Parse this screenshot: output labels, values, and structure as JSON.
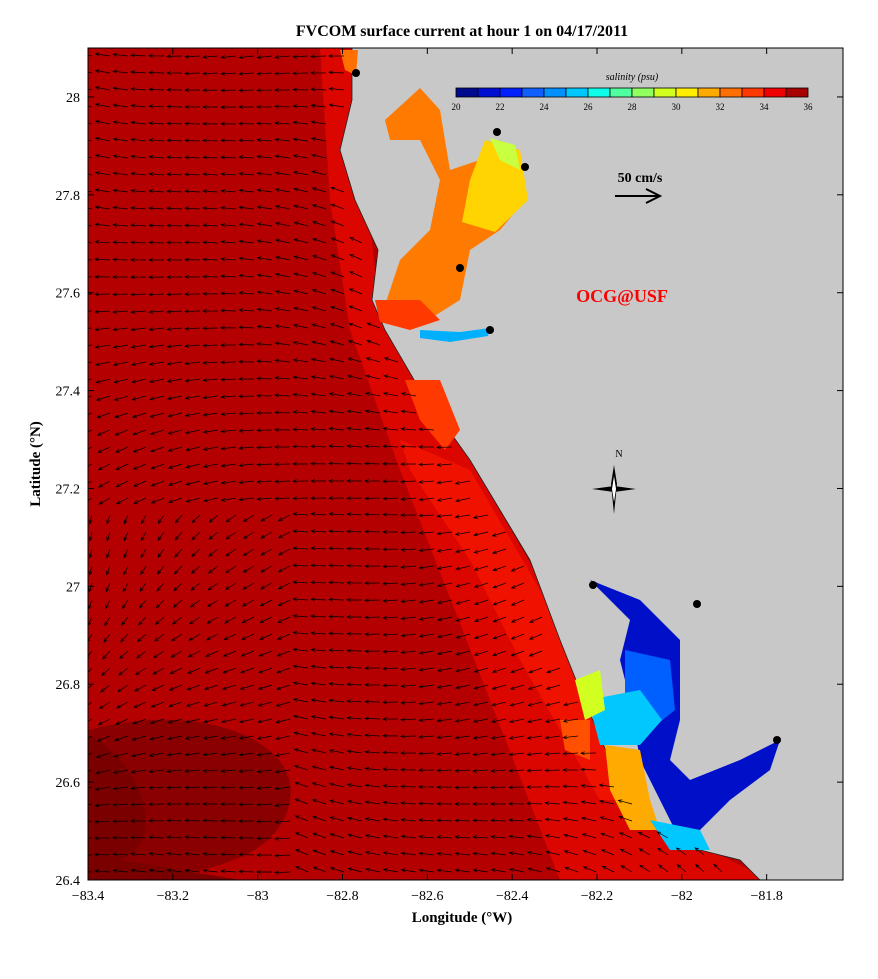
{
  "title": "FVCOM surface current at hour 1 on 04/17/2011",
  "xlabel": "Longitude (°W)",
  "ylabel": "Latitude (°N)",
  "xaxis": {
    "range": [
      -83.4,
      -81.62
    ],
    "ticks": [
      -83.4,
      -83.2,
      -83,
      -82.8,
      -82.6,
      -82.4,
      -82.2,
      -82,
      -81.8
    ],
    "tick_labels": [
      "−83.4",
      "−83.2",
      "−83",
      "−82.8",
      "−82.6",
      "−82.4",
      "−82.2",
      "−82",
      "−81.8"
    ]
  },
  "yaxis": {
    "range": [
      26.4,
      28.1
    ],
    "ticks": [
      26.4,
      26.6,
      26.8,
      27,
      27.2,
      27.4,
      27.6,
      27.8,
      28
    ],
    "tick_labels": [
      "26.4",
      "26.6",
      "26.8",
      "27",
      "27.2",
      "27.4",
      "27.6",
      "27.8",
      "28"
    ]
  },
  "colorbar": {
    "title": "salinity (psu)",
    "range": [
      20,
      36
    ],
    "labels": [
      "20",
      "22",
      "24",
      "26",
      "28",
      "30",
      "32",
      "34",
      "36"
    ],
    "colors": [
      "#000a8c",
      "#0010d0",
      "#0020ff",
      "#1060ff",
      "#0090ff",
      "#00c8ff",
      "#10ffe8",
      "#50ffa0",
      "#90ff60",
      "#d0ff20",
      "#ffee00",
      "#ffaa00",
      "#ff7000",
      "#ff3a00",
      "#f00000",
      "#a80000"
    ]
  },
  "scale_arrow": {
    "label": "50 cm/s",
    "value_cm_s": 50
  },
  "watermark": "OCG@USF",
  "compass": {
    "label": "N"
  },
  "colors": {
    "land": "#c8c8c8",
    "offshore_water": "#b40000",
    "nearshore_water": "#e00800",
    "watermark": "#ff0000"
  }
}
